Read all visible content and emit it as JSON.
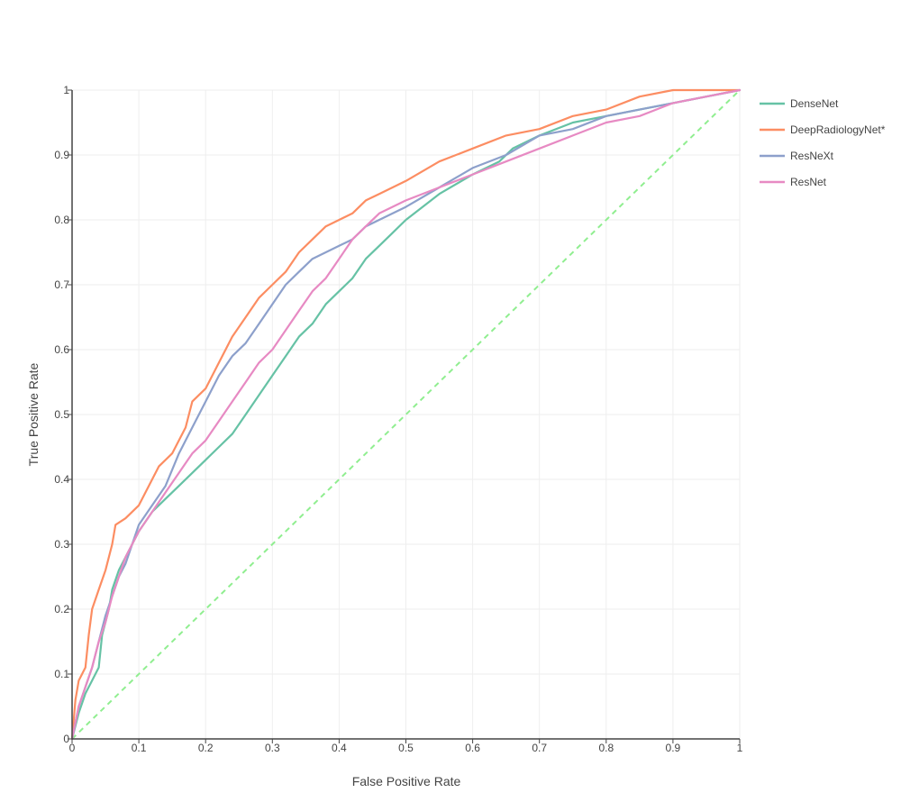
{
  "chart_data": {
    "type": "line",
    "title": "",
    "xlabel": "False Positive Rate",
    "ylabel": "True Positive Rate",
    "xlim": [
      0,
      1
    ],
    "ylim": [
      0,
      1
    ],
    "x_ticks": [
      "0",
      "0.1",
      "0.2",
      "0.3",
      "0.4",
      "0.5",
      "0.6",
      "0.7",
      "0.8",
      "0.9",
      "1"
    ],
    "y_ticks": [
      "0",
      "0.1",
      "0.2",
      "0.3",
      "0.4",
      "0.5",
      "0.6",
      "0.7",
      "0.8",
      "0.9",
      "1"
    ],
    "grid": true,
    "legend_position": "right",
    "chance_line": {
      "color": "#90ee90",
      "style": "dashed",
      "points": [
        [
          0,
          0
        ],
        [
          1,
          1
        ]
      ]
    },
    "series": [
      {
        "name": "DenseNet",
        "color": "#66c2a5",
        "points": [
          [
            0,
            0
          ],
          [
            0.01,
            0.04
          ],
          [
            0.02,
            0.07
          ],
          [
            0.03,
            0.09
          ],
          [
            0.04,
            0.11
          ],
          [
            0.045,
            0.16
          ],
          [
            0.05,
            0.18
          ],
          [
            0.055,
            0.2
          ],
          [
            0.06,
            0.23
          ],
          [
            0.07,
            0.26
          ],
          [
            0.08,
            0.28
          ],
          [
            0.09,
            0.3
          ],
          [
            0.1,
            0.32
          ],
          [
            0.12,
            0.35
          ],
          [
            0.14,
            0.37
          ],
          [
            0.16,
            0.39
          ],
          [
            0.18,
            0.41
          ],
          [
            0.2,
            0.43
          ],
          [
            0.22,
            0.45
          ],
          [
            0.24,
            0.47
          ],
          [
            0.26,
            0.5
          ],
          [
            0.28,
            0.53
          ],
          [
            0.3,
            0.56
          ],
          [
            0.32,
            0.59
          ],
          [
            0.34,
            0.62
          ],
          [
            0.36,
            0.64
          ],
          [
            0.38,
            0.67
          ],
          [
            0.4,
            0.69
          ],
          [
            0.42,
            0.71
          ],
          [
            0.44,
            0.74
          ],
          [
            0.46,
            0.76
          ],
          [
            0.48,
            0.78
          ],
          [
            0.5,
            0.8
          ],
          [
            0.55,
            0.84
          ],
          [
            0.6,
            0.87
          ],
          [
            0.64,
            0.89
          ],
          [
            0.66,
            0.91
          ],
          [
            0.7,
            0.93
          ],
          [
            0.75,
            0.95
          ],
          [
            0.8,
            0.96
          ],
          [
            0.85,
            0.97
          ],
          [
            0.9,
            0.98
          ],
          [
            0.95,
            0.99
          ],
          [
            1,
            1
          ]
        ]
      },
      {
        "name": "DeepRadiologyNet*",
        "color": "#fc8d62",
        "points": [
          [
            0,
            0
          ],
          [
            0.005,
            0.06
          ],
          [
            0.01,
            0.09
          ],
          [
            0.02,
            0.11
          ],
          [
            0.025,
            0.16
          ],
          [
            0.03,
            0.2
          ],
          [
            0.04,
            0.23
          ],
          [
            0.05,
            0.26
          ],
          [
            0.06,
            0.3
          ],
          [
            0.065,
            0.33
          ],
          [
            0.08,
            0.34
          ],
          [
            0.1,
            0.36
          ],
          [
            0.12,
            0.4
          ],
          [
            0.13,
            0.42
          ],
          [
            0.15,
            0.44
          ],
          [
            0.17,
            0.48
          ],
          [
            0.18,
            0.52
          ],
          [
            0.2,
            0.54
          ],
          [
            0.22,
            0.58
          ],
          [
            0.24,
            0.62
          ],
          [
            0.26,
            0.65
          ],
          [
            0.28,
            0.68
          ],
          [
            0.3,
            0.7
          ],
          [
            0.32,
            0.72
          ],
          [
            0.34,
            0.75
          ],
          [
            0.36,
            0.77
          ],
          [
            0.38,
            0.79
          ],
          [
            0.4,
            0.8
          ],
          [
            0.42,
            0.81
          ],
          [
            0.44,
            0.83
          ],
          [
            0.46,
            0.84
          ],
          [
            0.5,
            0.86
          ],
          [
            0.55,
            0.89
          ],
          [
            0.6,
            0.91
          ],
          [
            0.65,
            0.93
          ],
          [
            0.7,
            0.94
          ],
          [
            0.75,
            0.96
          ],
          [
            0.8,
            0.97
          ],
          [
            0.85,
            0.99
          ],
          [
            0.9,
            1
          ],
          [
            0.95,
            1
          ],
          [
            1,
            1
          ]
        ]
      },
      {
        "name": "ResNeXt",
        "color": "#8da0cb",
        "points": [
          [
            0,
            0
          ],
          [
            0.01,
            0.05
          ],
          [
            0.02,
            0.08
          ],
          [
            0.03,
            0.11
          ],
          [
            0.04,
            0.15
          ],
          [
            0.05,
            0.19
          ],
          [
            0.06,
            0.22
          ],
          [
            0.07,
            0.25
          ],
          [
            0.08,
            0.27
          ],
          [
            0.09,
            0.3
          ],
          [
            0.1,
            0.33
          ],
          [
            0.12,
            0.36
          ],
          [
            0.14,
            0.39
          ],
          [
            0.16,
            0.44
          ],
          [
            0.18,
            0.48
          ],
          [
            0.2,
            0.52
          ],
          [
            0.22,
            0.56
          ],
          [
            0.24,
            0.59
          ],
          [
            0.26,
            0.61
          ],
          [
            0.28,
            0.64
          ],
          [
            0.3,
            0.67
          ],
          [
            0.32,
            0.7
          ],
          [
            0.34,
            0.72
          ],
          [
            0.36,
            0.74
          ],
          [
            0.38,
            0.75
          ],
          [
            0.4,
            0.76
          ],
          [
            0.42,
            0.77
          ],
          [
            0.44,
            0.79
          ],
          [
            0.46,
            0.8
          ],
          [
            0.5,
            0.82
          ],
          [
            0.55,
            0.85
          ],
          [
            0.6,
            0.88
          ],
          [
            0.65,
            0.9
          ],
          [
            0.7,
            0.93
          ],
          [
            0.75,
            0.94
          ],
          [
            0.8,
            0.96
          ],
          [
            0.85,
            0.97
          ],
          [
            0.9,
            0.98
          ],
          [
            0.95,
            0.99
          ],
          [
            1,
            1
          ]
        ]
      },
      {
        "name": "ResNet",
        "color": "#e78ac3",
        "points": [
          [
            0,
            0
          ],
          [
            0.01,
            0.05
          ],
          [
            0.02,
            0.08
          ],
          [
            0.03,
            0.11
          ],
          [
            0.04,
            0.15
          ],
          [
            0.05,
            0.18
          ],
          [
            0.06,
            0.22
          ],
          [
            0.07,
            0.25
          ],
          [
            0.08,
            0.28
          ],
          [
            0.09,
            0.3
          ],
          [
            0.1,
            0.32
          ],
          [
            0.12,
            0.35
          ],
          [
            0.14,
            0.38
          ],
          [
            0.16,
            0.41
          ],
          [
            0.18,
            0.44
          ],
          [
            0.2,
            0.46
          ],
          [
            0.22,
            0.49
          ],
          [
            0.24,
            0.52
          ],
          [
            0.26,
            0.55
          ],
          [
            0.28,
            0.58
          ],
          [
            0.3,
            0.6
          ],
          [
            0.32,
            0.63
          ],
          [
            0.34,
            0.66
          ],
          [
            0.36,
            0.69
          ],
          [
            0.38,
            0.71
          ],
          [
            0.4,
            0.74
          ],
          [
            0.42,
            0.77
          ],
          [
            0.44,
            0.79
          ],
          [
            0.46,
            0.81
          ],
          [
            0.5,
            0.83
          ],
          [
            0.55,
            0.85
          ],
          [
            0.6,
            0.87
          ],
          [
            0.65,
            0.89
          ],
          [
            0.7,
            0.91
          ],
          [
            0.75,
            0.93
          ],
          [
            0.8,
            0.95
          ],
          [
            0.85,
            0.96
          ],
          [
            0.9,
            0.98
          ],
          [
            0.95,
            0.99
          ],
          [
            1,
            1
          ]
        ]
      }
    ]
  }
}
